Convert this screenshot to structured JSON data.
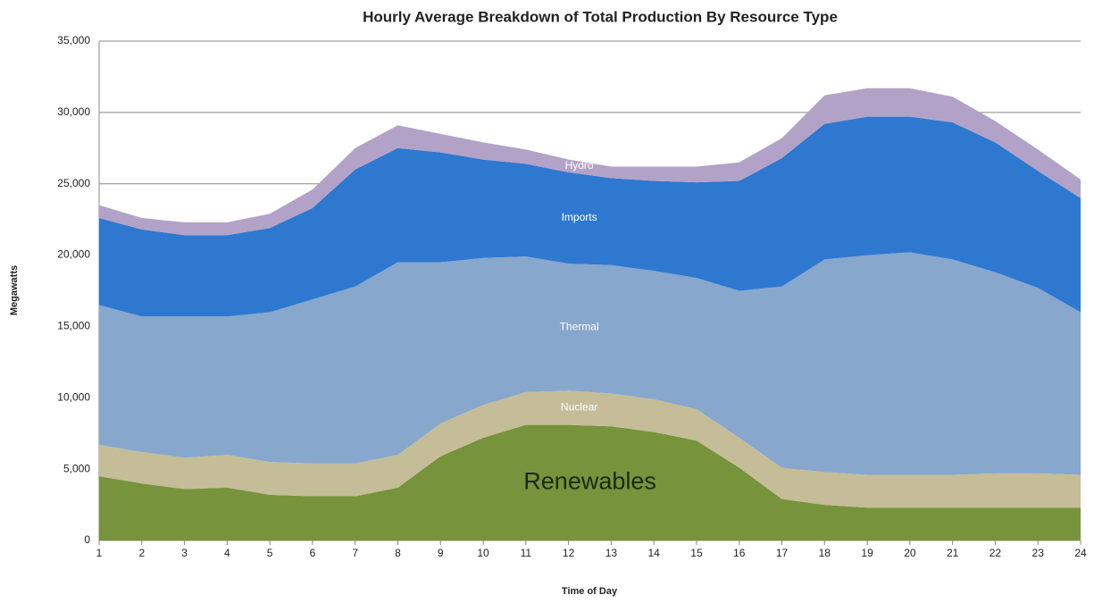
{
  "chart_data": {
    "type": "stacked-area",
    "title": "Hourly Average Breakdown of Total Production By Resource Type",
    "x_label": "Time of Day",
    "y_label": "Megawatts",
    "x": [
      1,
      2,
      3,
      4,
      5,
      6,
      7,
      8,
      9,
      10,
      11,
      12,
      13,
      14,
      15,
      16,
      17,
      18,
      19,
      20,
      21,
      22,
      23,
      24
    ],
    "xlim": [
      1,
      24
    ],
    "xticks": [
      1,
      2,
      3,
      4,
      5,
      6,
      7,
      8,
      9,
      10,
      11,
      12,
      13,
      14,
      15,
      16,
      17,
      18,
      19,
      20,
      21,
      22,
      23,
      24
    ],
    "ylim": [
      0,
      35000
    ],
    "yticks": [
      0,
      {
        "value": 5000,
        "label": "5,000"
      },
      {
        "value": 10000,
        "label": "10,000"
      },
      {
        "value": 15000,
        "label": "15,000"
      },
      {
        "value": 20000,
        "label": "20,000"
      },
      {
        "value": 25000,
        "label": "25,000"
      },
      {
        "value": 30000,
        "label": "30,000"
      },
      {
        "value": 35000,
        "label": "35,000"
      }
    ],
    "grid": true,
    "series": [
      {
        "name": "Renewables",
        "color": "#77933c",
        "values": [
          4500,
          4000,
          3600,
          3700,
          3200,
          3100,
          3100,
          3700,
          5900,
          7200,
          8100,
          8100,
          8000,
          7600,
          7000,
          5100,
          2900,
          2500,
          2300,
          2300,
          2300,
          2300,
          2300,
          2300
        ]
      },
      {
        "name": "Nuclear",
        "color": "#c4bd97",
        "values": [
          2200,
          2200,
          2200,
          2300,
          2300,
          2300,
          2300,
          2300,
          2300,
          2300,
          2300,
          2400,
          2300,
          2300,
          2200,
          2100,
          2200,
          2300,
          2300,
          2300,
          2300,
          2400,
          2400,
          2300
        ]
      },
      {
        "name": "Thermal",
        "color": "#87a7cd",
        "values": [
          9800,
          9500,
          9900,
          9700,
          10500,
          11500,
          12400,
          13500,
          11300,
          10300,
          9500,
          8900,
          9000,
          9000,
          9200,
          10300,
          12700,
          14900,
          15400,
          15600,
          15100,
          14100,
          13000,
          11400
        ]
      },
      {
        "name": "Imports",
        "color": "#2e78d0",
        "values": [
          6100,
          6100,
          5700,
          5700,
          5900,
          6400,
          8200,
          8000,
          7700,
          6900,
          6500,
          6400,
          6100,
          6300,
          6700,
          7700,
          9000,
          9500,
          9700,
          9500,
          9600,
          9100,
          8200,
          8000
        ]
      },
      {
        "name": "Hydro",
        "color": "#b3a2c7",
        "values": [
          900,
          800,
          900,
          900,
          1000,
          1300,
          1500,
          1600,
          1300,
          1200,
          1000,
          900,
          800,
          1000,
          1100,
          1300,
          1400,
          2000,
          2000,
          2000,
          1800,
          1500,
          1500,
          1300
        ]
      }
    ]
  }
}
